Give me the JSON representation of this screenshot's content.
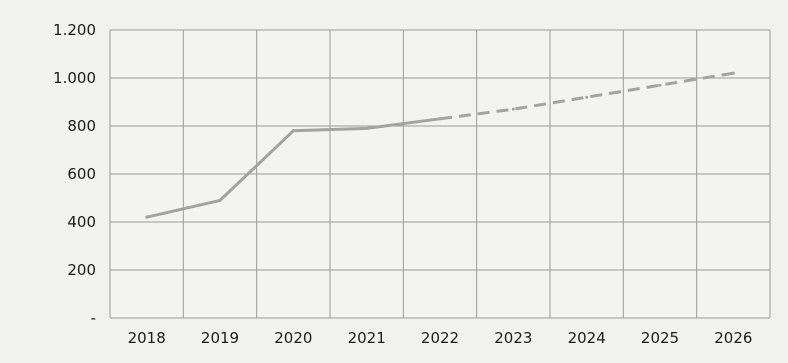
{
  "chart_data": {
    "type": "line",
    "title": "",
    "xlabel": "",
    "ylabel": "",
    "categories": [
      "2018",
      "2019",
      "2020",
      "2021",
      "2022",
      "2023",
      "2024",
      "2025",
      "2026"
    ],
    "series": [
      {
        "values": [
          420,
          490,
          780,
          790,
          830,
          870,
          920,
          970,
          1020
        ],
        "style": "solid-until-2022-then-dashed",
        "color": "#a3a3a3"
      }
    ],
    "y_ticks": [
      "-",
      "200",
      "400",
      "600",
      "800",
      "1.000",
      "1.200"
    ],
    "y_tick_values": [
      0,
      200,
      400,
      600,
      800,
      1000,
      1200
    ],
    "ylim": [
      0,
      1200
    ],
    "grid": true,
    "legend": "none",
    "colors": {
      "background": "#f1f1ef",
      "grid": "#9a9a9a",
      "line": "#a3a3a3",
      "text": "#1c1c1c"
    }
  }
}
